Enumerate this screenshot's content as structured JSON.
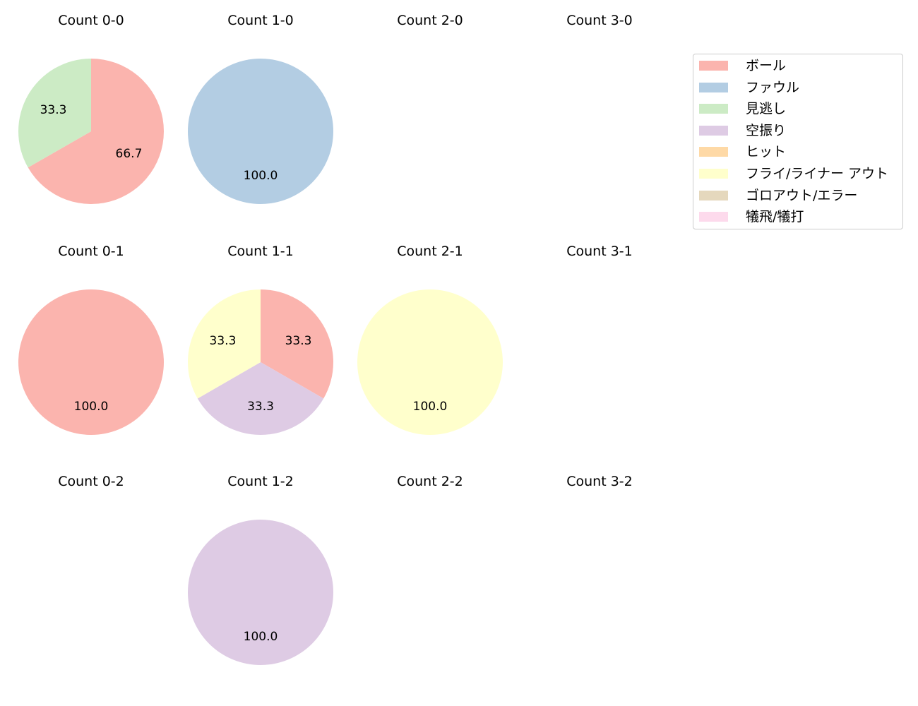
{
  "chart_data": {
    "type": "pie",
    "legend_position": "top-right",
    "legend": [
      {
        "label": "ボール",
        "color": "#fbb4ae"
      },
      {
        "label": "ファウル",
        "color": "#b3cde3"
      },
      {
        "label": "見逃し",
        "color": "#ccebc5"
      },
      {
        "label": "空振り",
        "color": "#decbe4"
      },
      {
        "label": "ヒット",
        "color": "#fed9a6"
      },
      {
        "label": "フライ/ライナー アウト",
        "color": "#ffffcc"
      },
      {
        "label": "ゴロアウト/エラー",
        "color": "#e5d8bd"
      },
      {
        "label": "犠飛/犠打",
        "color": "#fddaec"
      }
    ],
    "panels": [
      {
        "title": "Count 0-0",
        "row": 0,
        "col": 0,
        "slices": [
          {
            "category": "ボール",
            "value": 66.7,
            "label": "66.7"
          },
          {
            "category": "見逃し",
            "value": 33.3,
            "label": "33.3"
          }
        ]
      },
      {
        "title": "Count 1-0",
        "row": 0,
        "col": 1,
        "slices": [
          {
            "category": "ファウル",
            "value": 100.0,
            "label": "100.0"
          }
        ]
      },
      {
        "title": "Count 2-0",
        "row": 0,
        "col": 2,
        "slices": []
      },
      {
        "title": "Count 3-0",
        "row": 0,
        "col": 3,
        "slices": []
      },
      {
        "title": "Count 0-1",
        "row": 1,
        "col": 0,
        "slices": [
          {
            "category": "ボール",
            "value": 100.0,
            "label": "100.0"
          }
        ]
      },
      {
        "title": "Count 1-1",
        "row": 1,
        "col": 1,
        "slices": [
          {
            "category": "ボール",
            "value": 33.3,
            "label": "33.3"
          },
          {
            "category": "空振り",
            "value": 33.3,
            "label": "33.3"
          },
          {
            "category": "フライ/ライナー アウト",
            "value": 33.3,
            "label": "33.3"
          }
        ]
      },
      {
        "title": "Count 2-1",
        "row": 1,
        "col": 2,
        "slices": [
          {
            "category": "フライ/ライナー アウト",
            "value": 100.0,
            "label": "100.0"
          }
        ]
      },
      {
        "title": "Count 3-1",
        "row": 1,
        "col": 3,
        "slices": []
      },
      {
        "title": "Count 0-2",
        "row": 2,
        "col": 0,
        "slices": []
      },
      {
        "title": "Count 1-2",
        "row": 2,
        "col": 1,
        "slices": [
          {
            "category": "空振り",
            "value": 100.0,
            "label": "100.0"
          }
        ]
      },
      {
        "title": "Count 2-2",
        "row": 2,
        "col": 2,
        "slices": []
      },
      {
        "title": "Count 3-2",
        "row": 2,
        "col": 3,
        "slices": []
      }
    ]
  }
}
